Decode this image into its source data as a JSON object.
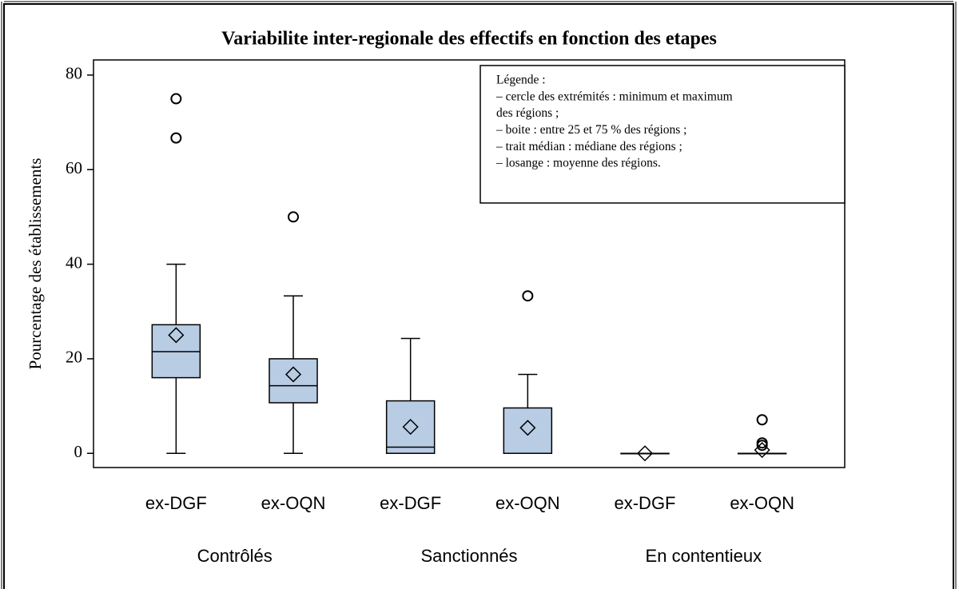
{
  "chart_data": {
    "type": "box",
    "title": "Variabilite inter-regionale des effectifs en fonction des etapes",
    "y_label": "Pourcentage des établissements",
    "categories": [
      "ex-DGF",
      "ex-OQN",
      "ex-DGF",
      "ex-OQN",
      "ex-DGF",
      "ex-OQN"
    ],
    "groups": [
      "Contrôlés",
      "Sanctionnés",
      "En contentieux"
    ],
    "color": "#b8cce4",
    "boxes": [
      {
        "min": 0,
        "q1": 16,
        "median": 21.5,
        "q3": 27.2,
        "max": 40,
        "mean": 25,
        "outliers": [
          66.7,
          75
        ]
      },
      {
        "min": 0,
        "q1": 10.7,
        "median": 14.3,
        "q3": 20,
        "max": 33.3,
        "mean": 16.7,
        "outliers": [
          50
        ]
      },
      {
        "min": 0,
        "q1": 0,
        "median": 1.3,
        "q3": 11.1,
        "max": 24.3,
        "mean": 5.6,
        "outliers": []
      },
      {
        "min": 0,
        "q1": 0,
        "median": 0,
        "q3": 9.6,
        "max": 16.7,
        "mean": 5.4,
        "outliers": [
          33.3
        ]
      },
      {
        "min": 0,
        "q1": 0,
        "median": 0,
        "q3": 0,
        "max": 0,
        "mean": 0,
        "outliers": []
      },
      {
        "min": 0,
        "q1": 0,
        "median": 0,
        "q3": 0,
        "max": 0,
        "mean": 0.7,
        "outliers": [
          7.1,
          2.2,
          1.7
        ]
      }
    ],
    "ylim": [
      -3,
      83.2
    ],
    "yticks": [
      0,
      20,
      40,
      60,
      80
    ],
    "legend_text": [
      "Légende :",
      "– cercle des extrémités : minimum  et maximum",
      "des régions ;",
      "– boite : entre 25 et 75 % des régions ;",
      "– trait médian : médiane des régions ;",
      "– losange : moyenne des régions."
    ]
  }
}
